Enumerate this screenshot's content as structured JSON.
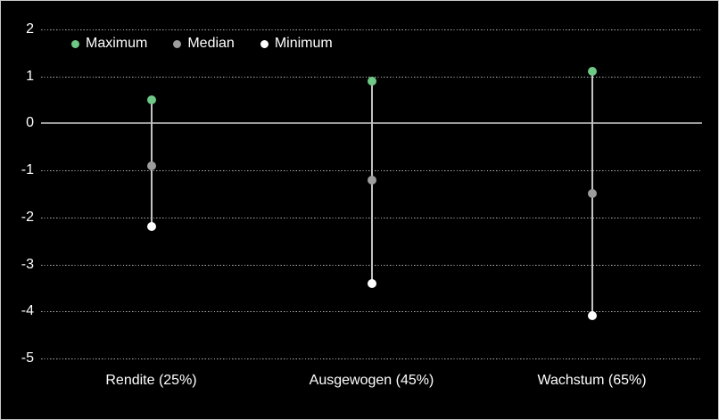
{
  "chart_style": {
    "background": "#000000",
    "border_color": "#c9c9c9",
    "text_color": "#ffffff",
    "gridline_color": "#b4b4b4",
    "zero_line_color": "#9a9a9a",
    "connector_color": "#c2c2c2"
  },
  "chart_data": {
    "type": "scatter",
    "subtype": "high-median-low range chart with vertical connectors",
    "title": "",
    "xlabel": "",
    "ylabel": "",
    "categories": [
      "Rendite (25%)",
      "Ausgewogen (45%)",
      "Wachstum (65%)"
    ],
    "series": [
      {
        "name": "Maximum",
        "color": "#6ec886",
        "values": [
          0.5,
          0.9,
          1.1
        ]
      },
      {
        "name": "Median",
        "color": "#9d9d9d",
        "values": [
          -0.9,
          -1.2,
          -1.5
        ]
      },
      {
        "name": "Minimum",
        "color": "#ffffff",
        "values": [
          -2.2,
          -3.4,
          -4.1
        ]
      }
    ],
    "ylim": [
      -5,
      2
    ],
    "yticks": [
      2,
      1,
      0,
      -1,
      -2,
      -3,
      -4,
      -5
    ],
    "grid": "horizontal dotted, solid line at 0",
    "legend_position": "top-left"
  }
}
